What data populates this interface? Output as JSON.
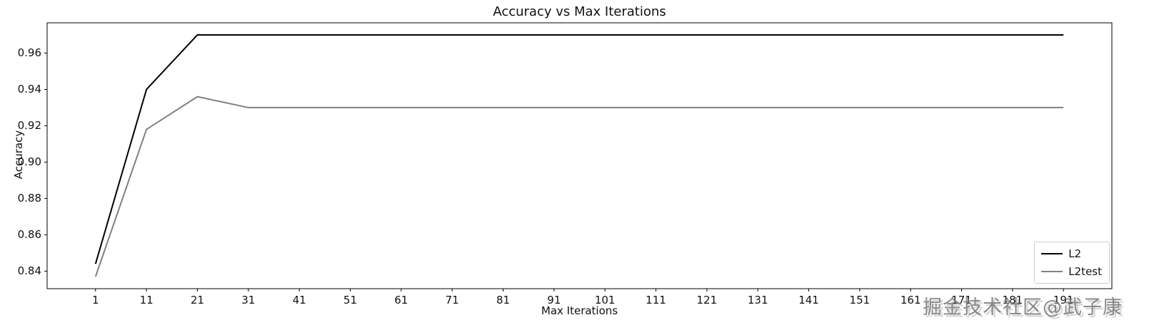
{
  "chart_data": {
    "type": "line",
    "title": "Accuracy vs Max Iterations",
    "xlabel": "Max Iterations",
    "ylabel": "Accuracy",
    "x": [
      1,
      11,
      21,
      31,
      41,
      51,
      61,
      71,
      81,
      91,
      101,
      111,
      121,
      131,
      141,
      151,
      161,
      171,
      181,
      191
    ],
    "series": [
      {
        "name": "L2",
        "color": "#000000",
        "values": [
          0.844,
          0.94,
          0.97,
          0.97,
          0.97,
          0.97,
          0.97,
          0.97,
          0.97,
          0.97,
          0.97,
          0.97,
          0.97,
          0.97,
          0.97,
          0.97,
          0.97,
          0.97,
          0.97,
          0.97
        ]
      },
      {
        "name": "L2test",
        "color": "#808080",
        "values": [
          0.837,
          0.918,
          0.936,
          0.93,
          0.93,
          0.93,
          0.93,
          0.93,
          0.93,
          0.93,
          0.93,
          0.93,
          0.93,
          0.93,
          0.93,
          0.93,
          0.93,
          0.93,
          0.93,
          0.93
        ]
      }
    ],
    "xlim": [
      -8.5,
      200.5
    ],
    "ylim": [
      0.83035,
      0.97665
    ],
    "xticks": [
      1,
      11,
      21,
      31,
      41,
      51,
      61,
      71,
      81,
      91,
      101,
      111,
      121,
      131,
      141,
      151,
      161,
      171,
      181,
      191
    ],
    "yticks": [
      0.84,
      0.86,
      0.88,
      0.9,
      0.92,
      0.94,
      0.96
    ],
    "ytick_labels": [
      "0.84",
      "0.86",
      "0.88",
      "0.90",
      "0.92",
      "0.94",
      "0.96"
    ],
    "grid": false,
    "legend_position": "lower right"
  },
  "watermark": {
    "text": "掘金技术社区@武子康"
  }
}
